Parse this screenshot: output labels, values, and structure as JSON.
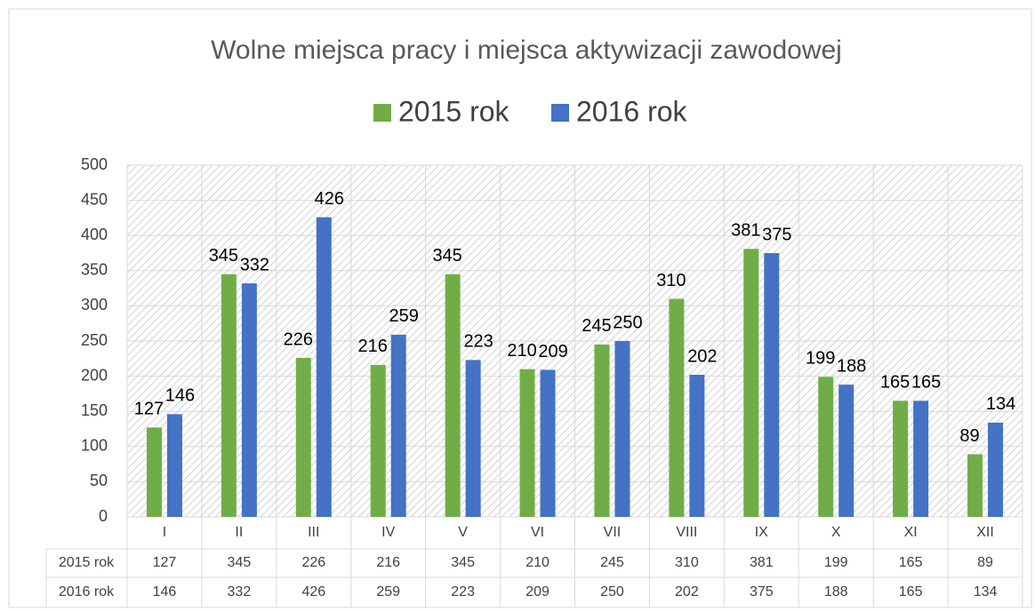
{
  "chart_data": {
    "type": "bar",
    "title": "Wolne miejsca pracy i miejsca aktywizacji zawodowej",
    "categories": [
      "I",
      "II",
      "III",
      "IV",
      "V",
      "VI",
      "VII",
      "VIII",
      "IX",
      "X",
      "XI",
      "XII"
    ],
    "series": [
      {
        "name": "2015 rok",
        "color": "#70ad47",
        "values": [
          127,
          345,
          226,
          216,
          345,
          210,
          245,
          310,
          381,
          199,
          165,
          89
        ]
      },
      {
        "name": "2016 rok",
        "color": "#4472c4",
        "values": [
          146,
          332,
          426,
          259,
          223,
          209,
          250,
          202,
          375,
          188,
          165,
          134
        ]
      }
    ],
    "ylim": [
      0,
      500
    ],
    "yticks": [
      0,
      50,
      100,
      150,
      200,
      250,
      300,
      350,
      400,
      450,
      500
    ],
    "grid": true,
    "legend": "top"
  }
}
